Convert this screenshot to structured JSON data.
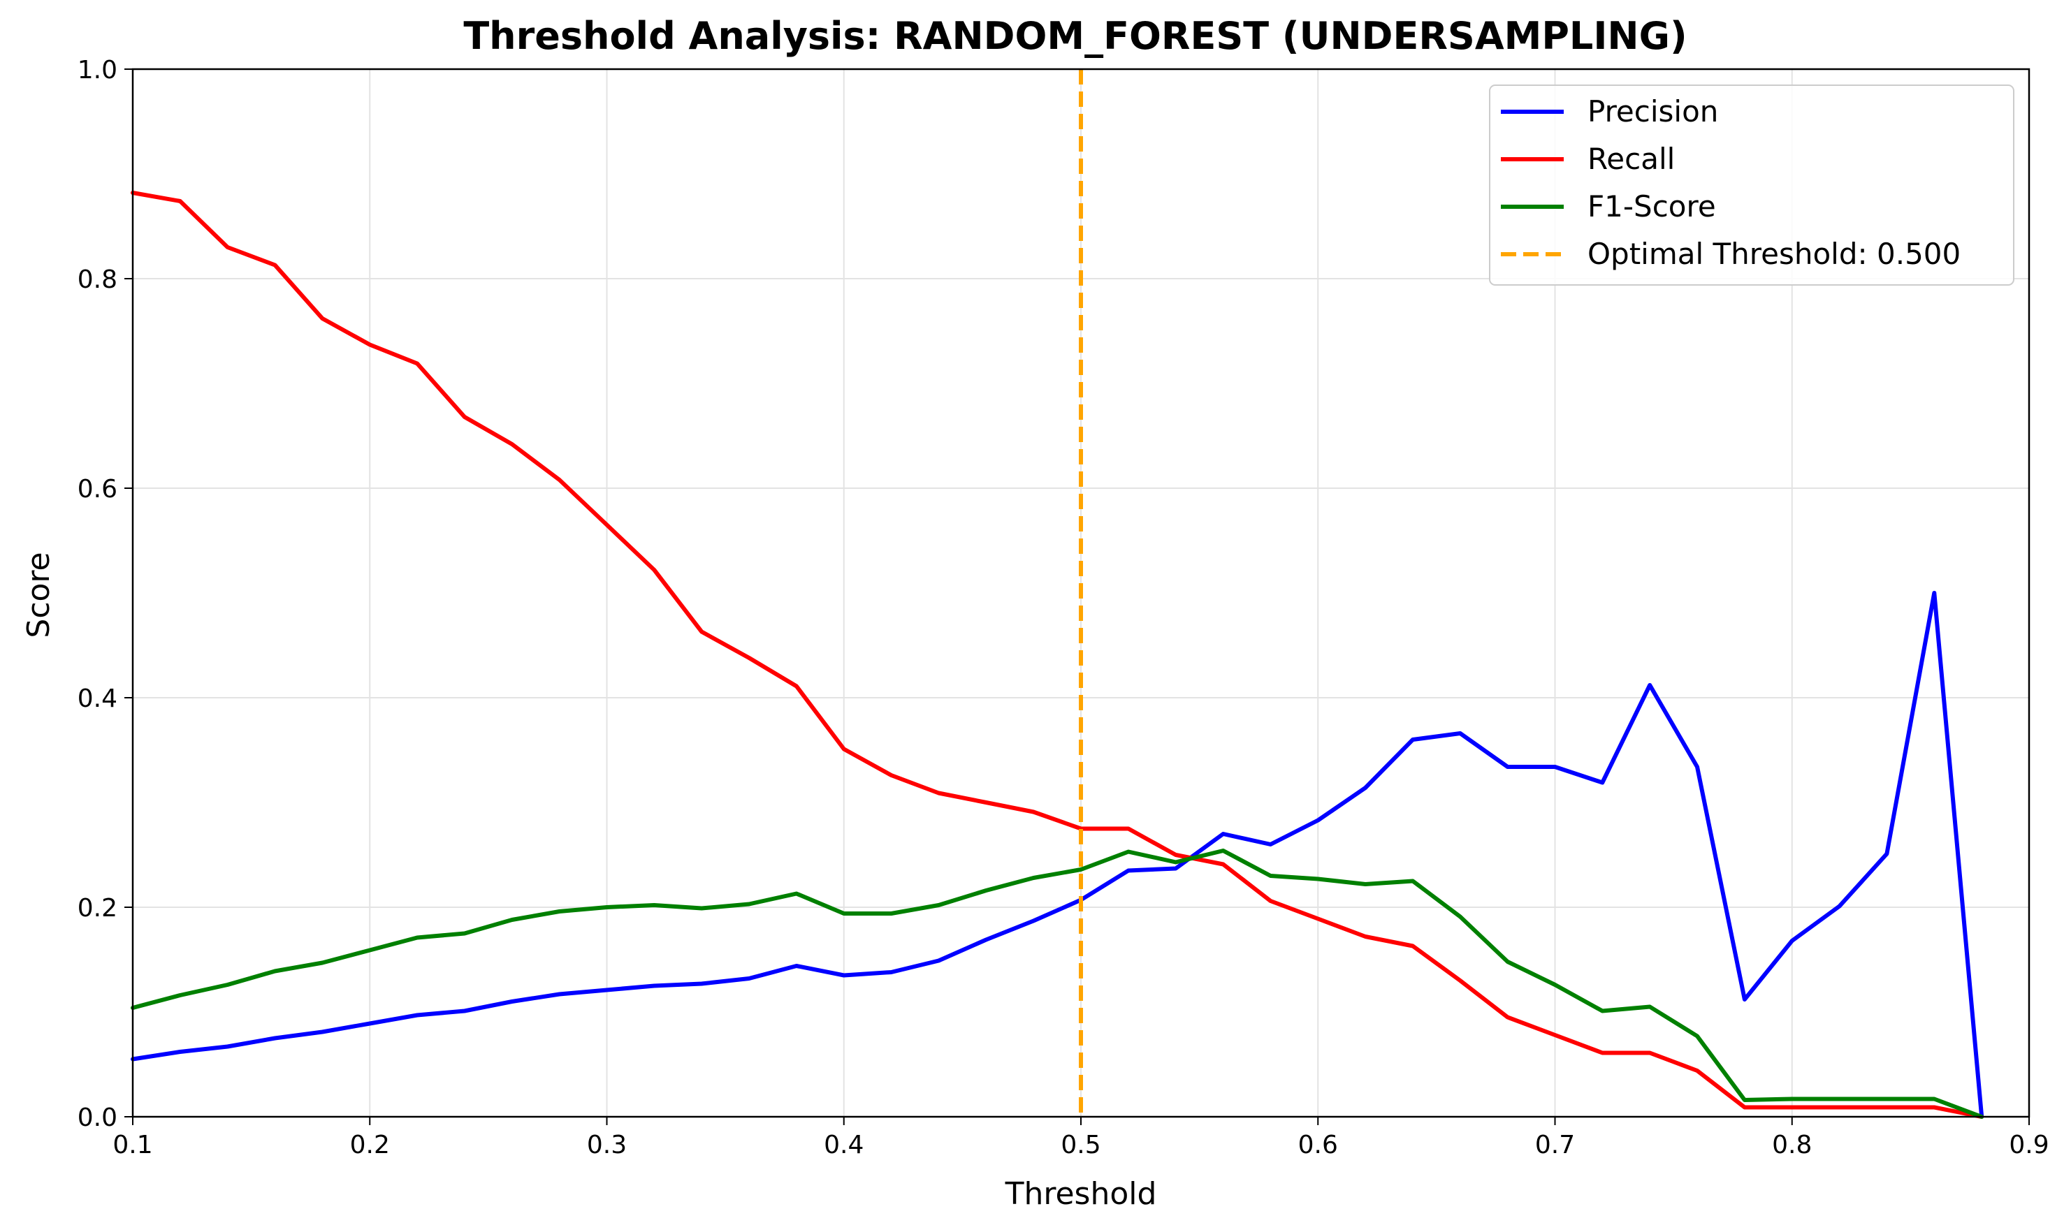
{
  "chart_data": {
    "type": "line",
    "title": "Threshold Analysis: RANDOM_FOREST (UNDERSAMPLING)",
    "xlabel": "Threshold",
    "ylabel": "Score",
    "xlim": [
      0.1,
      0.9
    ],
    "ylim": [
      0.0,
      1.0
    ],
    "xticks": [
      "0.1",
      "0.2",
      "0.3",
      "0.4",
      "0.5",
      "0.6",
      "0.7",
      "0.8",
      "0.9"
    ],
    "yticks": [
      "0.0",
      "0.2",
      "0.4",
      "0.6",
      "0.8",
      "1.0"
    ],
    "grid": true,
    "legend_position": "top-right",
    "x": [
      0.1,
      0.12,
      0.14,
      0.16,
      0.18,
      0.2,
      0.22,
      0.24,
      0.26,
      0.28,
      0.3,
      0.32,
      0.34,
      0.36,
      0.38,
      0.4,
      0.42,
      0.44,
      0.46,
      0.48,
      0.5,
      0.52,
      0.54,
      0.56,
      0.58,
      0.6,
      0.62,
      0.64,
      0.66,
      0.68,
      0.7,
      0.72,
      0.74,
      0.76,
      0.78,
      0.8,
      0.82,
      0.84,
      0.86,
      0.88
    ],
    "series": [
      {
        "name": "Precision",
        "color": "#0000ff",
        "values": [
          0.055,
          0.062,
          0.067,
          0.075,
          0.081,
          0.089,
          0.097,
          0.101,
          0.11,
          0.117,
          0.121,
          0.125,
          0.127,
          0.132,
          0.144,
          0.135,
          0.138,
          0.149,
          0.169,
          0.187,
          0.207,
          0.235,
          0.237,
          0.27,
          0.26,
          0.283,
          0.314,
          0.36,
          0.366,
          0.334,
          0.334,
          0.319,
          0.412,
          0.334,
          0.112,
          0.168,
          0.201,
          0.251,
          0.5,
          0.0
        ]
      },
      {
        "name": "Recall",
        "color": "#ff0000",
        "values": [
          0.882,
          0.874,
          0.83,
          0.813,
          0.762,
          0.737,
          0.719,
          0.668,
          0.642,
          0.608,
          0.565,
          0.522,
          0.463,
          0.438,
          0.411,
          0.351,
          0.326,
          0.309,
          0.3,
          0.291,
          0.275,
          0.275,
          0.25,
          0.241,
          0.206,
          0.189,
          0.172,
          0.163,
          0.13,
          0.095,
          0.078,
          0.061,
          0.061,
          0.044,
          0.009,
          0.009,
          0.009,
          0.009,
          0.009,
          0.0
        ]
      },
      {
        "name": "F1-Score",
        "color": "#008000",
        "values": [
          0.104,
          0.116,
          0.126,
          0.139,
          0.147,
          0.159,
          0.171,
          0.175,
          0.188,
          0.196,
          0.2,
          0.202,
          0.199,
          0.203,
          0.213,
          0.194,
          0.194,
          0.202,
          0.216,
          0.228,
          0.236,
          0.253,
          0.243,
          0.254,
          0.23,
          0.227,
          0.222,
          0.225,
          0.191,
          0.148,
          0.126,
          0.101,
          0.105,
          0.077,
          0.016,
          0.017,
          0.017,
          0.017,
          0.017,
          0.0
        ]
      }
    ],
    "threshold_line": {
      "name": "Optimal Threshold: 0.500",
      "x": 0.5,
      "color": "#ffa500",
      "style": "dashed"
    }
  }
}
